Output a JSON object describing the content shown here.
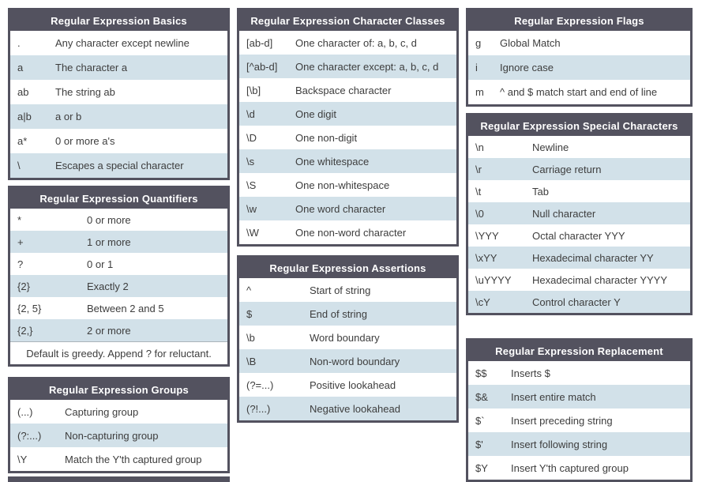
{
  "page": {
    "background": "#ffffff"
  },
  "colors": {
    "header_bg": "#53525f",
    "header_text": "#ffffff",
    "table_border": "#53525f",
    "row_alt_bg": "#d2e1e9",
    "row_text": "#3d3d3d"
  },
  "tables": {
    "basics": {
      "title": "Regular Expression Basics",
      "rows": [
        {
          "symbol": ".",
          "description": "Any character except newline"
        },
        {
          "symbol": "a",
          "description": "The character a"
        },
        {
          "symbol": "ab",
          "description": "The string ab"
        },
        {
          "symbol": "a|b",
          "description": "a or b"
        },
        {
          "symbol": "a*",
          "description": "0 or more a's"
        },
        {
          "symbol": "\\",
          "description": "Escapes a special character"
        }
      ]
    },
    "quantifiers": {
      "title": "Regular Expression Quantifiers",
      "rows": [
        {
          "symbol": "*",
          "description": "0 or more"
        },
        {
          "symbol": "+",
          "description": "1 or more"
        },
        {
          "symbol": "?",
          "description": "0 or 1"
        },
        {
          "symbol": "{2}",
          "description": "Exactly 2"
        },
        {
          "symbol": "{2, 5}",
          "description": "Between 2 and 5"
        },
        {
          "symbol": "{2,}",
          "description": "2 or more"
        }
      ],
      "footer": "Default is greedy. Append ? for reluctant."
    },
    "groups": {
      "title": "Regular Expression Groups",
      "rows": [
        {
          "symbol": "(...)",
          "description": "Capturing group"
        },
        {
          "symbol": "(?:...)",
          "description": "Non-capturing group"
        },
        {
          "symbol": "\\Y",
          "description": "Match the Y'th captured group"
        }
      ]
    },
    "character_classes": {
      "title": "Regular Expression Character Classes",
      "rows": [
        {
          "symbol": "[ab-d]",
          "description": "One character of: a, b, c, d"
        },
        {
          "symbol": "[^ab-d]",
          "description": "One character except: a, b, c, d"
        },
        {
          "symbol": "[\\b]",
          "description": "Backspace character"
        },
        {
          "symbol": "\\d",
          "description": "One digit"
        },
        {
          "symbol": "\\D",
          "description": "One non-digit"
        },
        {
          "symbol": "\\s",
          "description": "One whitespace"
        },
        {
          "symbol": "\\S",
          "description": "One non-whitespace"
        },
        {
          "symbol": "\\w",
          "description": "One word character"
        },
        {
          "symbol": "\\W",
          "description": "One non-word character"
        }
      ]
    },
    "assertions": {
      "title": "Regular Expression Assertions",
      "rows": [
        {
          "symbol": "^",
          "description": "Start of string"
        },
        {
          "symbol": "$",
          "description": "End of string"
        },
        {
          "symbol": "\\b",
          "description": "Word boundary"
        },
        {
          "symbol": "\\B",
          "description": "Non-word boundary"
        },
        {
          "symbol": "(?=...)",
          "description": "Positive lookahead"
        },
        {
          "symbol": "(?!...)",
          "description": "Negative lookahead"
        }
      ]
    },
    "flags": {
      "title": "Regular Expression Flags",
      "rows": [
        {
          "symbol": "g",
          "description": "Global Match"
        },
        {
          "symbol": "i",
          "description": "Ignore case"
        },
        {
          "symbol": "m",
          "description": "^ and $ match start and end of line"
        }
      ]
    },
    "special_characters": {
      "title": "Regular Expression Special Characters",
      "rows": [
        {
          "symbol": "\\n",
          "description": "Newline"
        },
        {
          "symbol": "\\r",
          "description": "Carriage return"
        },
        {
          "symbol": "\\t",
          "description": "Tab"
        },
        {
          "symbol": "\\0",
          "description": "Null character"
        },
        {
          "symbol": "\\YYY",
          "description": "Octal character YYY"
        },
        {
          "symbol": "\\xYY",
          "description": "Hexadecimal character YY"
        },
        {
          "symbol": "\\uYYYY",
          "description": "Hexadecimal character YYYY"
        },
        {
          "symbol": "\\cY",
          "description": "Control character Y"
        }
      ]
    },
    "replacement": {
      "title": "Regular Expression Replacement",
      "rows": [
        {
          "symbol": "$$",
          "description": "Inserts $"
        },
        {
          "symbol": "$&",
          "description": "Insert entire match"
        },
        {
          "symbol": "$`",
          "description": "Insert preceding string"
        },
        {
          "symbol": "$'",
          "description": "Insert following string"
        },
        {
          "symbol": "$Y",
          "description": "Insert Y'th captured group"
        }
      ]
    }
  }
}
